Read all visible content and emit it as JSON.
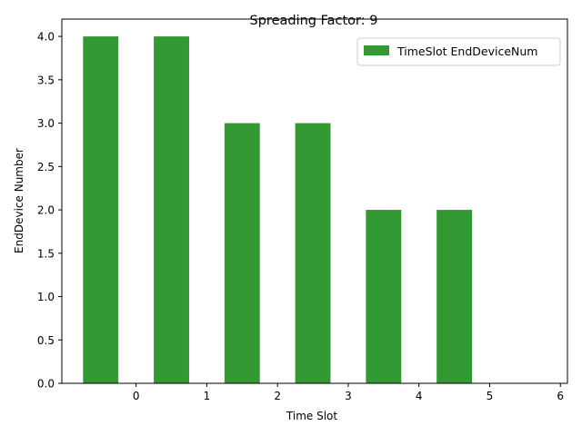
{
  "chart_data": {
    "type": "bar",
    "title": "Spreading Factor: 9",
    "xlabel": "Time Slot",
    "ylabel": "EndDevice Number",
    "x": [
      0,
      1,
      2,
      3,
      4,
      5
    ],
    "x_ticks": [
      "0",
      "1",
      "2",
      "3",
      "4",
      "5",
      "6"
    ],
    "y_ticks": [
      "0.0",
      "0.5",
      "1.0",
      "1.5",
      "2.0",
      "2.5",
      "3.0",
      "3.5",
      "4.0"
    ],
    "series": [
      {
        "name": "TimeSlot EndDeviceNum",
        "values": [
          4,
          4,
          3,
          3,
          2,
          2
        ],
        "color": "#339933"
      }
    ],
    "xlim": [
      -1.05,
      6.1
    ],
    "ylim": [
      0,
      4.2
    ],
    "bar_offset": -0.5,
    "grid": false,
    "legend": "top-right"
  }
}
